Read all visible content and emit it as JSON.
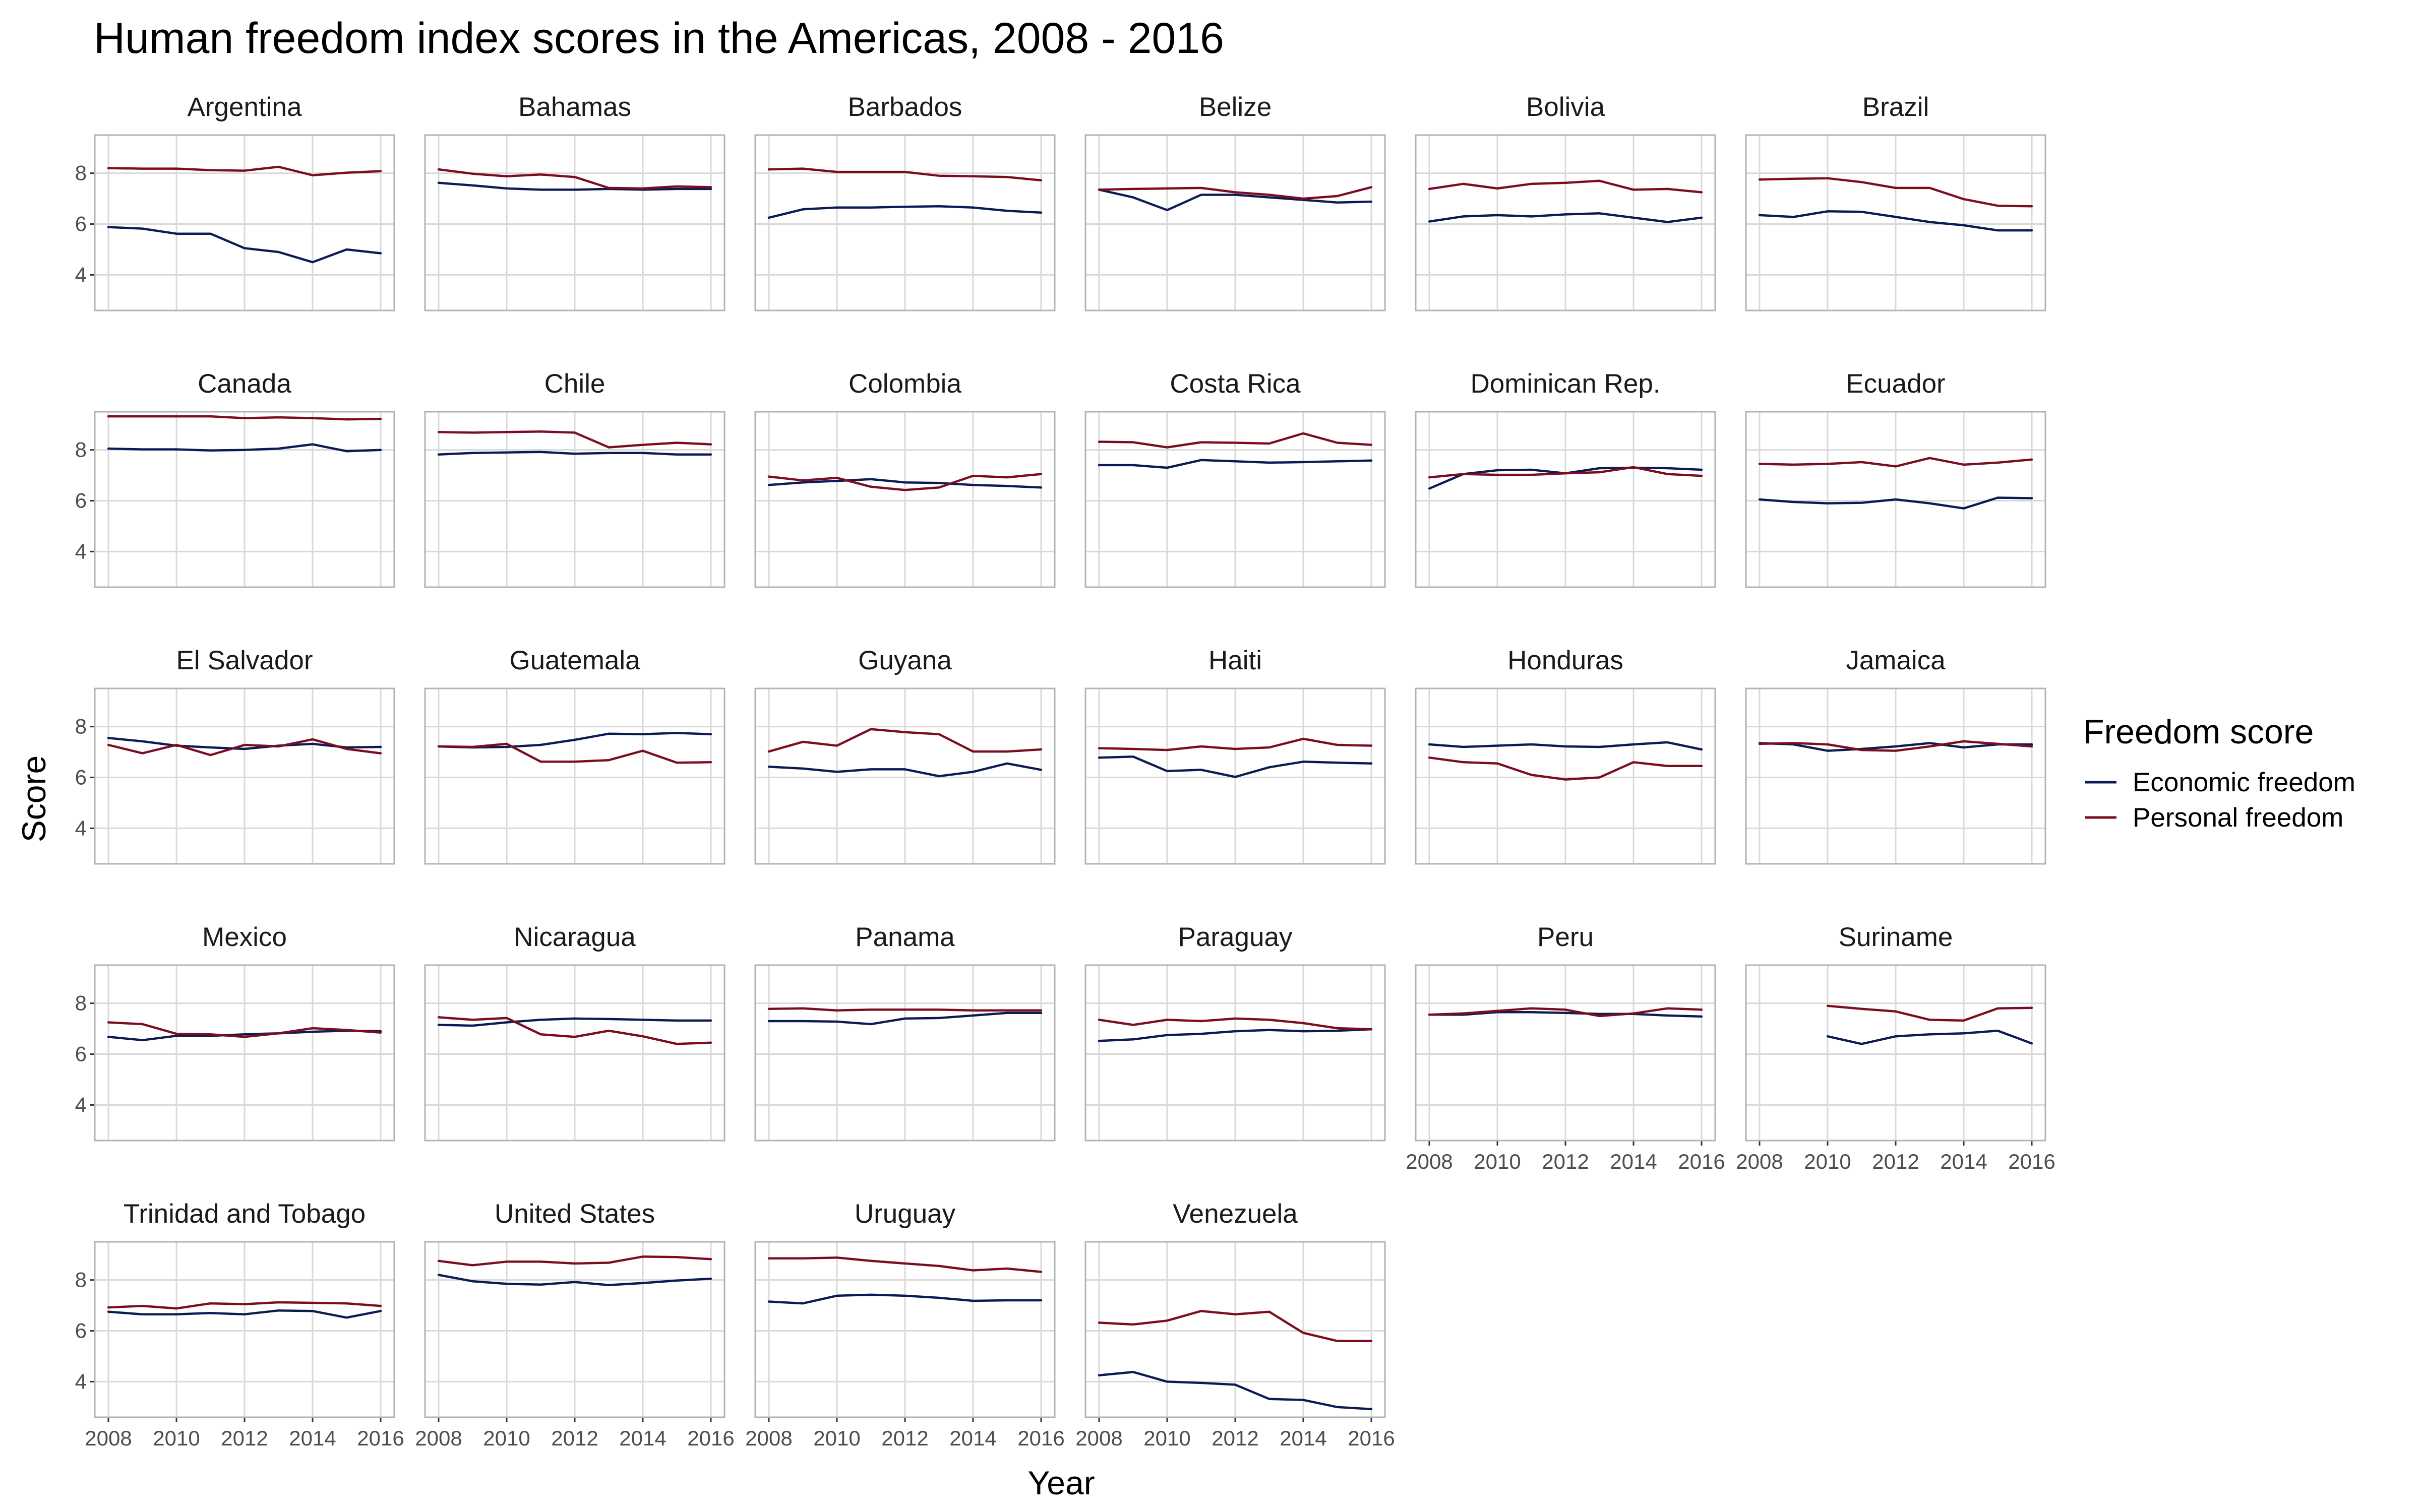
{
  "chart_data": {
    "type": "line",
    "title": "Human freedom index scores in the Americas, 2008 - 2016",
    "xlabel": "Year",
    "ylabel": "Score",
    "x": [
      2008,
      2009,
      2010,
      2011,
      2012,
      2013,
      2014,
      2015,
      2016
    ],
    "xticks": [
      2008,
      2010,
      2012,
      2014,
      2016
    ],
    "xtick_labels": [
      "2008",
      "2010",
      "2012",
      "2014",
      "2016"
    ],
    "yticks": [
      4,
      6,
      8
    ],
    "ytick_labels": [
      "4",
      "6",
      "8"
    ],
    "xlim": [
      2007.6,
      2016.4
    ],
    "ylim": [
      2.6,
      9.5
    ],
    "grid": true,
    "legend": {
      "title": "Freedom score",
      "position": "right",
      "entries": [
        {
          "label": "Economic freedom",
          "color": "#0d1b54"
        },
        {
          "label": "Personal freedom",
          "color": "#7a0d1f"
        }
      ]
    },
    "ncol": 6,
    "panels": [
      {
        "name": "Argentina",
        "economic": [
          5.88,
          5.82,
          5.62,
          5.62,
          5.05,
          4.9,
          4.5,
          5.0,
          4.85
        ],
        "personal": [
          8.2,
          8.18,
          8.18,
          8.12,
          8.1,
          8.25,
          7.92,
          8.02,
          8.08
        ]
      },
      {
        "name": "Bahamas",
        "economic": [
          7.62,
          7.52,
          7.4,
          7.35,
          7.35,
          7.38,
          7.35,
          7.38,
          7.38
        ],
        "personal": [
          8.15,
          7.98,
          7.88,
          7.95,
          7.85,
          7.42,
          7.4,
          7.48,
          7.45
        ]
      },
      {
        "name": "Barbados",
        "economic": [
          6.25,
          6.58,
          6.65,
          6.65,
          6.68,
          6.7,
          6.65,
          6.52,
          6.45
        ],
        "personal": [
          8.15,
          8.18,
          8.05,
          8.05,
          8.05,
          7.9,
          7.88,
          7.85,
          7.72
        ]
      },
      {
        "name": "Belize",
        "economic": [
          7.35,
          7.05,
          6.55,
          7.15,
          7.15,
          7.05,
          6.95,
          6.85,
          6.88
        ],
        "personal": [
          7.35,
          7.38,
          7.4,
          7.42,
          7.25,
          7.15,
          7.0,
          7.1,
          7.45
        ]
      },
      {
        "name": "Bolivia",
        "economic": [
          6.1,
          6.3,
          6.35,
          6.3,
          6.38,
          6.42,
          6.25,
          6.08,
          6.25
        ],
        "personal": [
          7.38,
          7.58,
          7.4,
          7.58,
          7.62,
          7.7,
          7.35,
          7.38,
          7.25
        ]
      },
      {
        "name": "Brazil",
        "economic": [
          6.35,
          6.28,
          6.5,
          6.48,
          6.28,
          6.08,
          5.95,
          5.75,
          5.75
        ],
        "personal": [
          7.75,
          7.78,
          7.8,
          7.65,
          7.42,
          7.42,
          6.98,
          6.72,
          6.7
        ]
      },
      {
        "name": "Canada",
        "economic": [
          8.05,
          8.02,
          8.02,
          7.98,
          8.0,
          8.05,
          8.22,
          7.95,
          8.0
        ],
        "personal": [
          9.32,
          9.32,
          9.32,
          9.32,
          9.25,
          9.28,
          9.25,
          9.2,
          9.22
        ]
      },
      {
        "name": "Chile",
        "economic": [
          7.82,
          7.88,
          7.9,
          7.92,
          7.85,
          7.88,
          7.88,
          7.82,
          7.82
        ],
        "personal": [
          8.7,
          8.68,
          8.7,
          8.72,
          8.68,
          8.1,
          8.2,
          8.28,
          8.22
        ]
      },
      {
        "name": "Colombia",
        "economic": [
          6.62,
          6.72,
          6.78,
          6.85,
          6.72,
          6.7,
          6.62,
          6.58,
          6.52
        ],
        "personal": [
          6.95,
          6.8,
          6.9,
          6.55,
          6.42,
          6.52,
          6.98,
          6.92,
          7.05
        ]
      },
      {
        "name": "Costa Rica",
        "economic": [
          7.4,
          7.4,
          7.3,
          7.6,
          7.55,
          7.5,
          7.52,
          7.55,
          7.58
        ],
        "personal": [
          8.32,
          8.3,
          8.1,
          8.3,
          8.28,
          8.25,
          8.65,
          8.28,
          8.2
        ]
      },
      {
        "name": "Dominican Rep.",
        "economic": [
          6.48,
          7.05,
          7.2,
          7.22,
          7.08,
          7.28,
          7.3,
          7.28,
          7.22
        ],
        "personal": [
          6.92,
          7.05,
          7.02,
          7.02,
          7.08,
          7.12,
          7.32,
          7.05,
          6.98
        ]
      },
      {
        "name": "Ecuador",
        "economic": [
          6.05,
          5.95,
          5.9,
          5.92,
          6.05,
          5.9,
          5.7,
          6.12,
          6.1
        ],
        "personal": [
          7.45,
          7.42,
          7.45,
          7.52,
          7.35,
          7.68,
          7.42,
          7.5,
          7.62
        ]
      },
      {
        "name": "El Salvador",
        "economic": [
          7.55,
          7.42,
          7.25,
          7.18,
          7.12,
          7.25,
          7.32,
          7.18,
          7.2
        ],
        "personal": [
          7.28,
          6.95,
          7.28,
          6.88,
          7.28,
          7.22,
          7.5,
          7.12,
          6.95
        ]
      },
      {
        "name": "Guatemala",
        "economic": [
          7.22,
          7.18,
          7.2,
          7.28,
          7.48,
          7.72,
          7.7,
          7.75,
          7.7
        ],
        "personal": [
          7.22,
          7.2,
          7.32,
          6.62,
          6.62,
          6.68,
          7.05,
          6.58,
          6.6
        ]
      },
      {
        "name": "Guyana",
        "economic": [
          6.42,
          6.35,
          6.22,
          6.32,
          6.32,
          6.05,
          6.22,
          6.55,
          6.3
        ],
        "personal": [
          7.02,
          7.4,
          7.25,
          7.9,
          7.78,
          7.7,
          7.02,
          7.02,
          7.1
        ]
      },
      {
        "name": "Haiti",
        "economic": [
          6.78,
          6.82,
          6.25,
          6.3,
          6.02,
          6.4,
          6.62,
          6.58,
          6.55
        ],
        "personal": [
          7.15,
          7.12,
          7.08,
          7.22,
          7.12,
          7.18,
          7.52,
          7.28,
          7.25
        ]
      },
      {
        "name": "Honduras",
        "economic": [
          7.3,
          7.2,
          7.25,
          7.3,
          7.22,
          7.2,
          7.3,
          7.38,
          7.1
        ],
        "personal": [
          6.78,
          6.6,
          6.55,
          6.1,
          5.92,
          6.0,
          6.6,
          6.45,
          6.45
        ]
      },
      {
        "name": "Jamaica",
        "economic": [
          7.35,
          7.3,
          7.05,
          7.12,
          7.22,
          7.35,
          7.18,
          7.3,
          7.3
        ],
        "personal": [
          7.32,
          7.35,
          7.3,
          7.08,
          7.05,
          7.22,
          7.42,
          7.32,
          7.22
        ]
      },
      {
        "name": "Mexico",
        "economic": [
          6.68,
          6.55,
          6.72,
          6.72,
          6.78,
          6.82,
          6.88,
          6.92,
          6.9
        ],
        "personal": [
          7.25,
          7.18,
          6.8,
          6.78,
          6.68,
          6.82,
          7.02,
          6.95,
          6.85
        ]
      },
      {
        "name": "Nicaragua",
        "economic": [
          7.15,
          7.12,
          7.25,
          7.35,
          7.4,
          7.38,
          7.35,
          7.32,
          7.32
        ],
        "personal": [
          7.45,
          7.35,
          7.42,
          6.78,
          6.68,
          6.92,
          6.7,
          6.4,
          6.45
        ]
      },
      {
        "name": "Panama",
        "economic": [
          7.3,
          7.3,
          7.28,
          7.18,
          7.4,
          7.42,
          7.52,
          7.62,
          7.62
        ],
        "personal": [
          7.78,
          7.8,
          7.72,
          7.75,
          7.75,
          7.75,
          7.72,
          7.72,
          7.72
        ]
      },
      {
        "name": "Paraguay",
        "economic": [
          6.52,
          6.58,
          6.75,
          6.8,
          6.9,
          6.95,
          6.9,
          6.92,
          6.98
        ],
        "personal": [
          7.35,
          7.15,
          7.35,
          7.3,
          7.4,
          7.35,
          7.22,
          7.02,
          6.98
        ]
      },
      {
        "name": "Peru",
        "economic": [
          7.55,
          7.55,
          7.65,
          7.65,
          7.62,
          7.58,
          7.58,
          7.52,
          7.48
        ],
        "personal": [
          7.55,
          7.6,
          7.7,
          7.8,
          7.75,
          7.5,
          7.6,
          7.8,
          7.75
        ]
      },
      {
        "name": "Suriname",
        "economic": [
          null,
          null,
          6.7,
          6.4,
          6.7,
          6.78,
          6.82,
          6.92,
          6.42
        ],
        "personal": [
          null,
          null,
          7.9,
          7.78,
          7.68,
          7.35,
          7.32,
          7.8,
          7.82
        ]
      },
      {
        "name": "Trinidad and Tobago",
        "economic": [
          6.75,
          6.65,
          6.65,
          6.7,
          6.65,
          6.8,
          6.78,
          6.52,
          6.78
        ],
        "personal": [
          6.92,
          6.98,
          6.88,
          7.08,
          7.05,
          7.12,
          7.1,
          7.08,
          6.98
        ]
      },
      {
        "name": "United States",
        "economic": [
          8.2,
          7.95,
          7.85,
          7.82,
          7.92,
          7.8,
          7.88,
          7.98,
          8.05
        ],
        "personal": [
          8.75,
          8.58,
          8.72,
          8.72,
          8.65,
          8.68,
          8.92,
          8.9,
          8.82
        ]
      },
      {
        "name": "Uruguay",
        "economic": [
          7.15,
          7.08,
          7.38,
          7.42,
          7.38,
          7.3,
          7.18,
          7.2,
          7.2
        ],
        "personal": [
          8.85,
          8.85,
          8.88,
          8.75,
          8.65,
          8.55,
          8.38,
          8.45,
          8.32
        ]
      },
      {
        "name": "Venezuela",
        "economic": [
          4.25,
          4.38,
          4.0,
          3.95,
          3.88,
          3.32,
          3.28,
          3.0,
          2.92
        ],
        "personal": [
          6.32,
          6.25,
          6.4,
          6.78,
          6.65,
          6.75,
          5.92,
          5.6,
          5.6
        ]
      }
    ]
  }
}
